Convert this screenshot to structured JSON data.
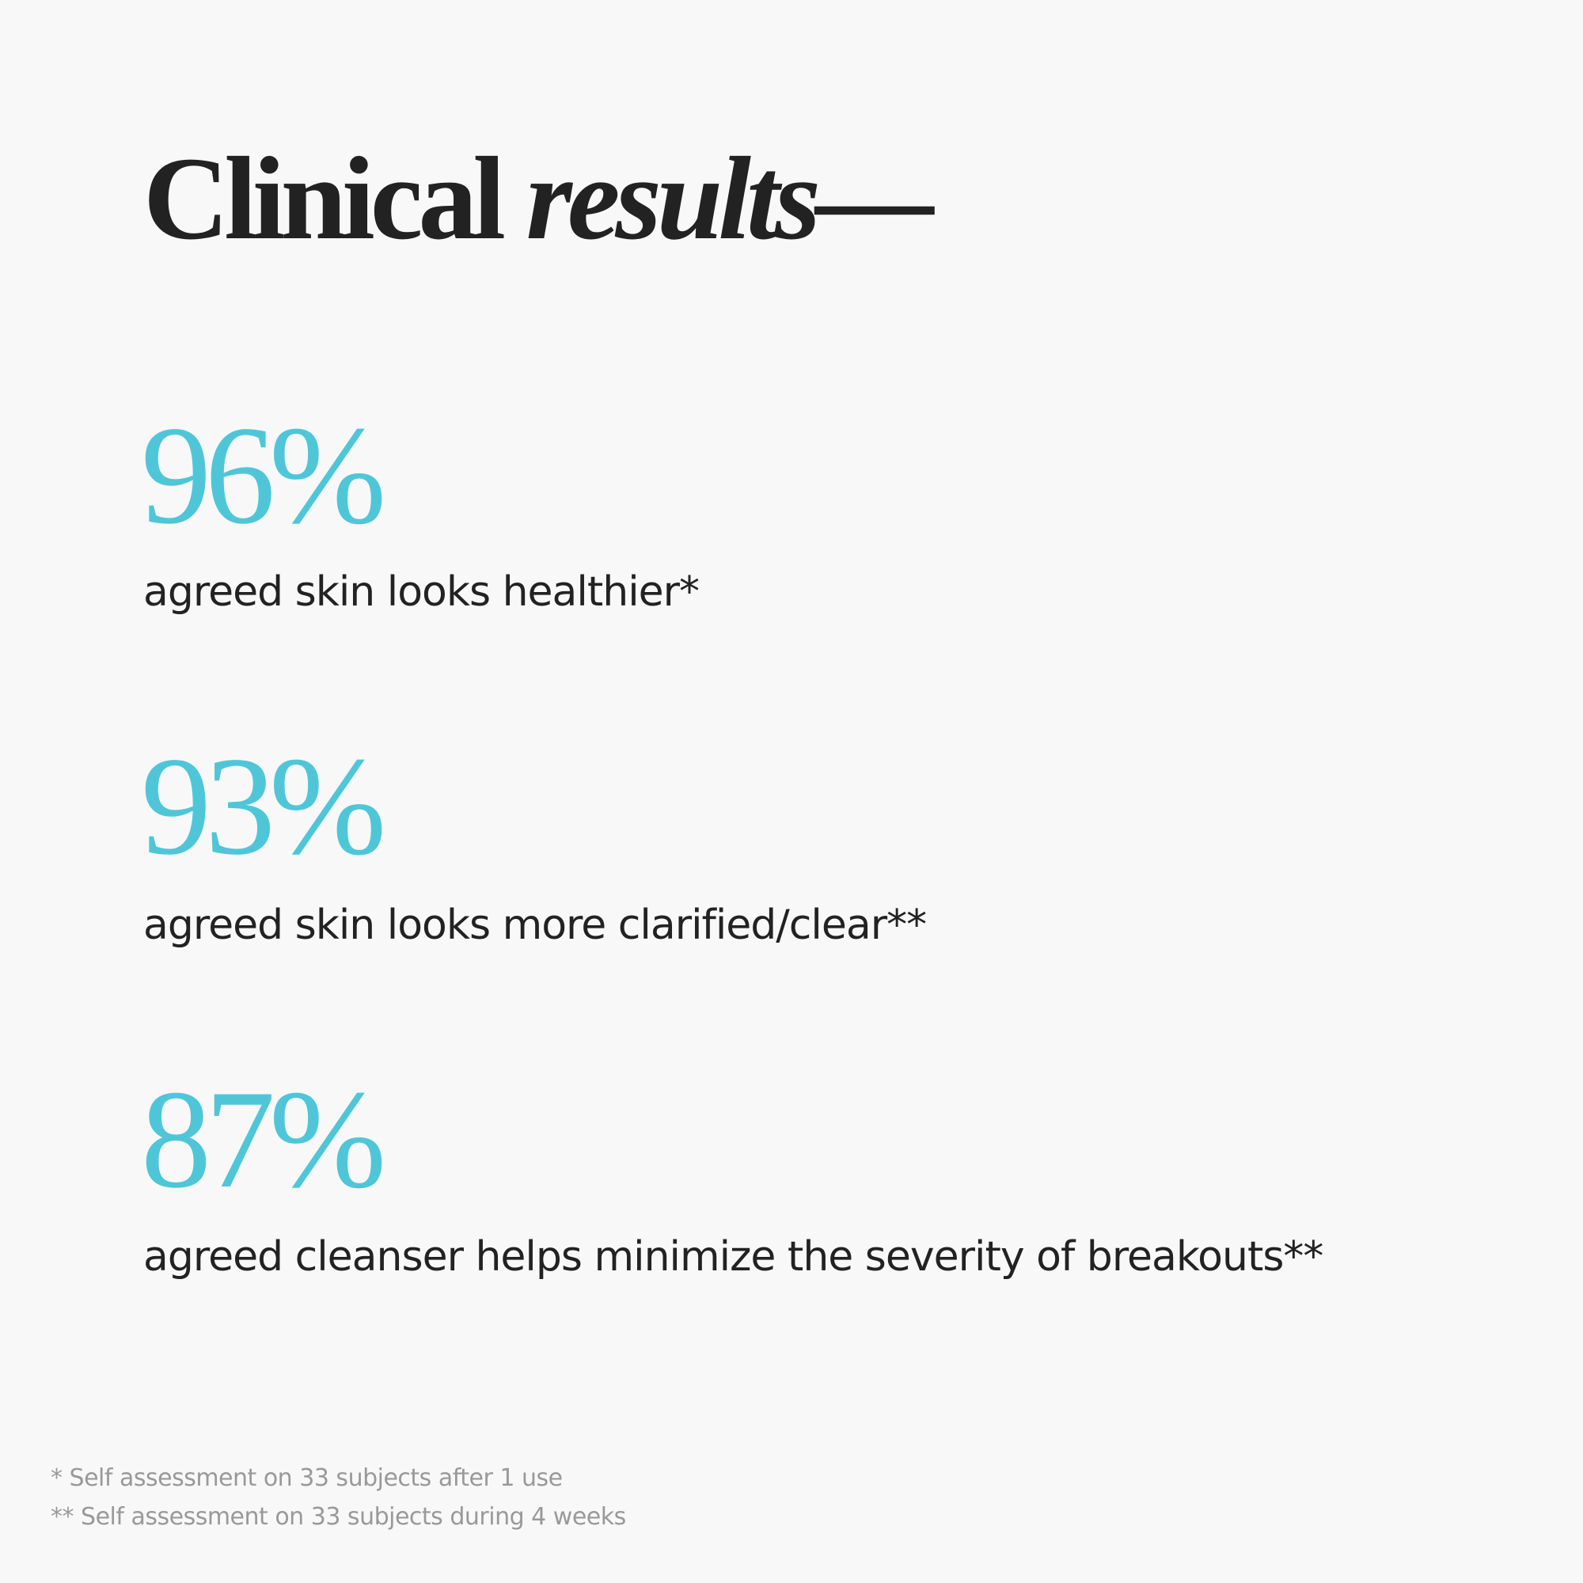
{
  "title": {
    "regular": "Clinical",
    "italic": "results—"
  },
  "stats": [
    {
      "value": "96%",
      "description": "agreed skin looks healthier*"
    },
    {
      "value": "93%",
      "description": "agreed skin looks more clarified/clear**"
    },
    {
      "value": "87%",
      "description": "agreed cleanser helps minimize the severity of breakouts**"
    }
  ],
  "footnotes": [
    "* Self assessment on 33 subjects after 1 use",
    "** Self assessment on 33 subjects during 4 weeks"
  ]
}
